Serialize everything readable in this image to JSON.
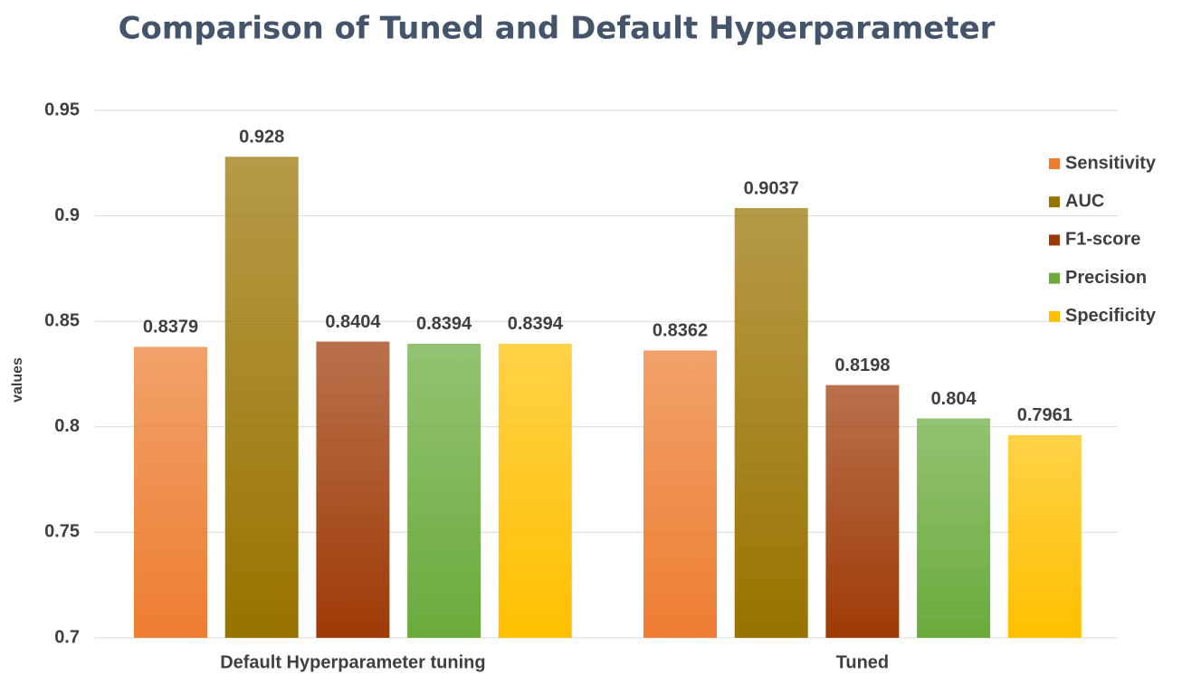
{
  "chart_data": {
    "type": "bar",
    "title": "Comparison of Tuned and Default Hyperparameter",
    "ylabel": "values",
    "categories": [
      "Default Hyperparameter tuning",
      "Tuned"
    ],
    "series": [
      {
        "name": "Sensitivity",
        "color": "#ed7d31",
        "values": [
          0.8379,
          0.8362
        ]
      },
      {
        "name": "AUC",
        "color": "#997300",
        "values": [
          0.928,
          0.9037
        ]
      },
      {
        "name": "F1-score",
        "color": "#9e3a06",
        "values": [
          0.8404,
          0.8198
        ]
      },
      {
        "name": "Precision",
        "color": "#6aab3c",
        "values": [
          0.8394,
          0.804
        ]
      },
      {
        "name": "Specificity",
        "color": "#ffc000",
        "values": [
          0.8394,
          0.7961
        ]
      }
    ],
    "ylim": [
      0.7,
      0.95
    ],
    "yticks": [
      0.7,
      0.75,
      0.8,
      0.85,
      0.9,
      0.95
    ],
    "grid": true,
    "legend": "right"
  }
}
